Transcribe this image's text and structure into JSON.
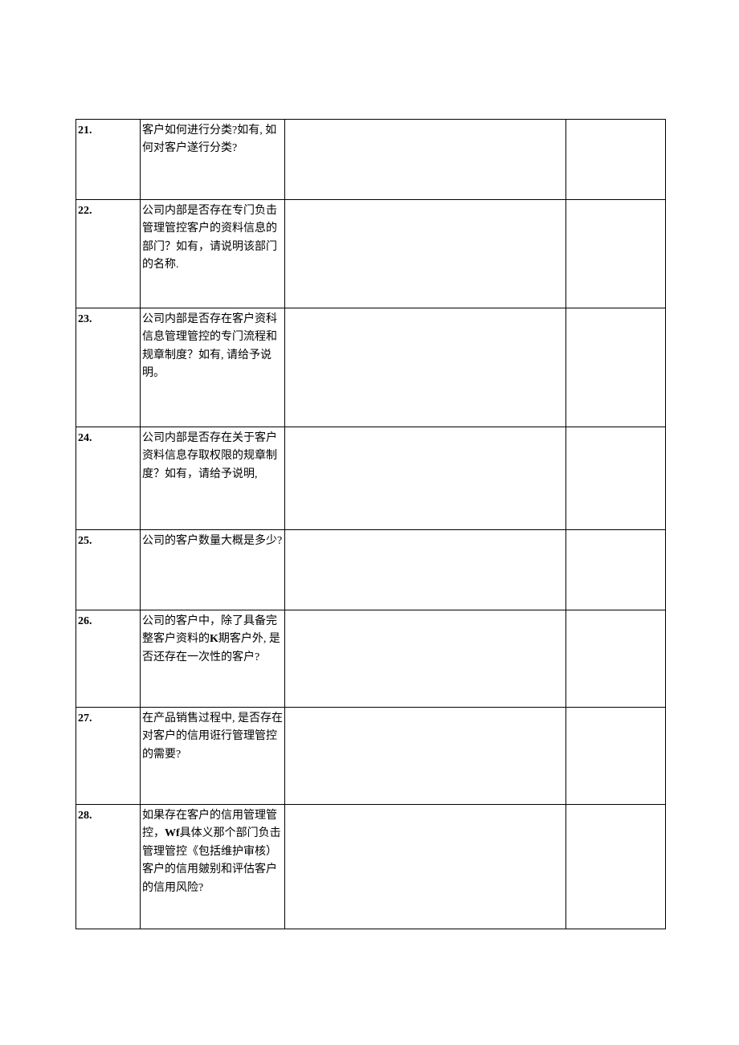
{
  "table": {
    "columns": {
      "num_width": 80,
      "question_width": 180,
      "answer1_width": 350,
      "answer2_width": 124
    },
    "border_color": "#000000",
    "background_color": "#ffffff",
    "text_color": "#000000",
    "font_size": 14,
    "line_height": 1.6,
    "rows": [
      {
        "num": "21.",
        "question": "客户如何进行分类?如有, 如何对客户遂行分类?",
        "answer1": "",
        "answer2": "",
        "min_height": 100
      },
      {
        "num": "22.",
        "question": "公司内部是否存在专门负击管理管控客户的资料信息的部门？如有，请说明该部门的名称.",
        "answer1": "",
        "answer2": "",
        "min_height": 135
      },
      {
        "num": "23.",
        "question": "公司内部是否存在客户资科信息管理管控的专门流程和规章制度？如有, 请给予说明。",
        "answer1": "",
        "answer2": "",
        "min_height": 148
      },
      {
        "num": "24.",
        "question": "公司内部是否存在关于客户资料信息存取权限的规章制度？如有，请给予说明,",
        "answer1": "",
        "answer2": "",
        "min_height": 128
      },
      {
        "num": "25.",
        "question": "公司的客户数量大概是多少?",
        "answer1": "",
        "answer2": "",
        "min_height": 100
      },
      {
        "num": "26.",
        "question_html": "公司的客户中，除了具备完整客户资料的<span class=\"bold-char\">K</span>期客户外, 是否还存在一次性的客户?",
        "question": "公司的客户中，除了具备完整客户资料的K期客户外, 是否还存在一次性的客户?",
        "answer1": "",
        "answer2": "",
        "min_height": 121
      },
      {
        "num": "27.",
        "question": "在产品销售过程中, 是否存在对客户的信用诳行管理管控的需要?",
        "answer1": "",
        "answer2": "",
        "min_height": 121
      },
      {
        "num": "28.",
        "question_html": "如果存在客户的信用管理管控，<span class=\"bold-char\">Wf</span>具体义那个部门负击管理管控《包括维护审核）客户的信用皴别和评估客户的信用风险?",
        "question": "如果存在客户的信用管理管控，Wf具体义那个部门负击管理管控《包括维护审核）客户的信用皴别和评估客户的信用风险?",
        "answer1": "",
        "answer2": "",
        "min_height": 155
      }
    ]
  }
}
